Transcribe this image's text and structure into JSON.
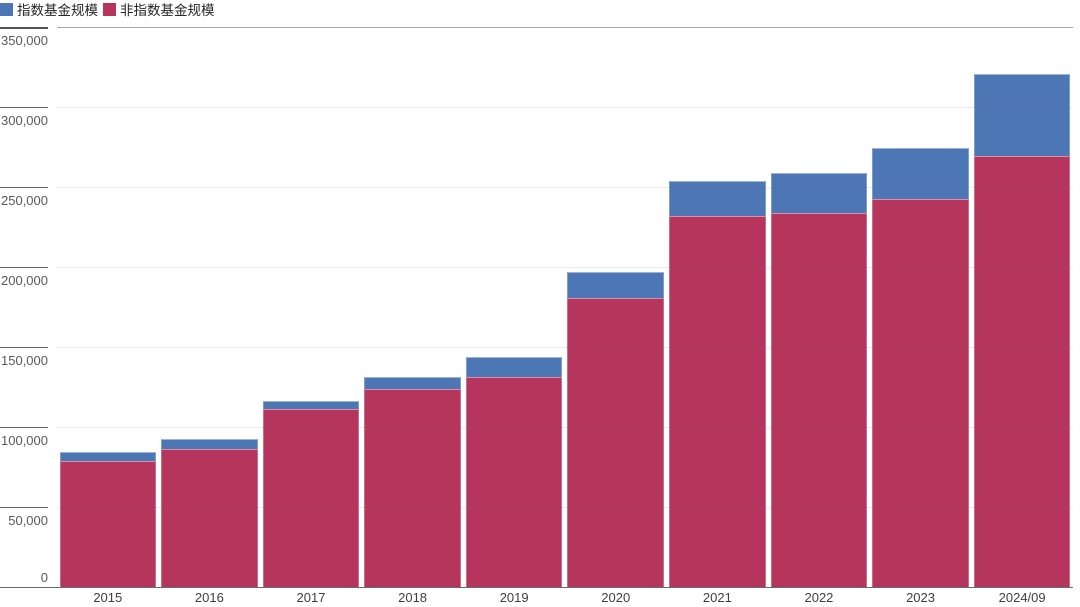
{
  "chart_data": {
    "type": "bar",
    "stacked": true,
    "title": "",
    "xlabel": "",
    "ylabel": "",
    "categories": [
      "2015",
      "2016",
      "2017",
      "2018",
      "2019",
      "2020",
      "2021",
      "2022",
      "2023",
      "2024/09"
    ],
    "series": [
      {
        "name": "指数基金规模",
        "color": "#4C77B4",
        "stack_position": "top",
        "values": [
          5500,
          6000,
          5500,
          7500,
          12000,
          16500,
          21500,
          25000,
          32000,
          51000
        ]
      },
      {
        "name": "非指数基金规模",
        "color": "#B6355C",
        "stack_position": "bottom",
        "values": [
          79000,
          86500,
          111000,
          123500,
          131500,
          180500,
          232000,
          234000,
          242500,
          269500
        ]
      }
    ],
    "ylim": [
      0,
      350000
    ],
    "ytick_interval": 50000,
    "ytick_labels": [
      "350,000",
      "300,000",
      "250,000",
      "200,000",
      "150,000",
      "100,000",
      "50,000",
      "0"
    ],
    "grid": "horizontal",
    "legend_position": "top-left"
  },
  "colors": {
    "index_series": "#4C77B4",
    "non_index_series": "#B6355C",
    "gridline": "#e7e7e7",
    "top_gridline": "#ababab",
    "axis_line": "#6b6b6b",
    "tick": "#616161",
    "y_label_text": "#595959",
    "x_label_text": "#404040",
    "legend_text": "#262626",
    "background": "#ffffff"
  }
}
